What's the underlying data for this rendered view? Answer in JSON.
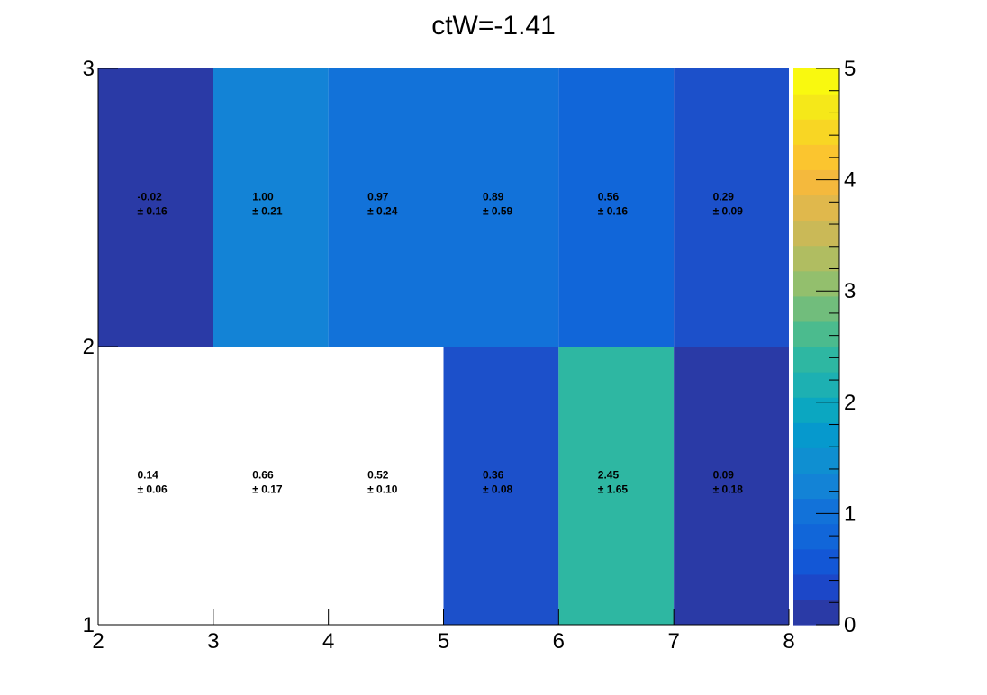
{
  "chart_data": {
    "type": "heatmap",
    "title": "ctW=-1.41",
    "xlabel": "",
    "ylabel": "",
    "x_edges": [
      2,
      3,
      4,
      5,
      6,
      7,
      8
    ],
    "y_edges": [
      1,
      2,
      3
    ],
    "xlim": [
      2,
      8
    ],
    "ylim": [
      1,
      3
    ],
    "x_ticks": [
      "2",
      "3",
      "4",
      "5",
      "6",
      "7",
      "8"
    ],
    "y_ticks": [
      "1",
      "2",
      "3"
    ],
    "z_range": [
      0,
      5
    ],
    "colorbar_ticks": [
      "0",
      "1",
      "2",
      "3",
      "4",
      "5"
    ],
    "cells": [
      {
        "x": [
          2,
          3
        ],
        "y": [
          2,
          3
        ],
        "value": "-0.02",
        "error": "0.16",
        "z": -0.02
      },
      {
        "x": [
          3,
          4
        ],
        "y": [
          2,
          3
        ],
        "value": "1.00",
        "error": "0.21",
        "z": 1.0
      },
      {
        "x": [
          4,
          5
        ],
        "y": [
          2,
          3
        ],
        "value": "0.97",
        "error": "0.24",
        "z": 0.97
      },
      {
        "x": [
          5,
          6
        ],
        "y": [
          2,
          3
        ],
        "value": "0.89",
        "error": "0.59",
        "z": 0.89
      },
      {
        "x": [
          6,
          7
        ],
        "y": [
          2,
          3
        ],
        "value": "0.56",
        "error": "0.16",
        "z": 0.56
      },
      {
        "x": [
          7,
          8
        ],
        "y": [
          2,
          3
        ],
        "value": "0.29",
        "error": "0.09",
        "z": 0.29
      },
      {
        "x": [
          2,
          3
        ],
        "y": [
          1,
          2
        ],
        "value": "0.14",
        "error": "0.06",
        "z": 0.14,
        "blank": true
      },
      {
        "x": [
          3,
          4
        ],
        "y": [
          1,
          2
        ],
        "value": "0.66",
        "error": "0.17",
        "z": 0.66,
        "blank": true
      },
      {
        "x": [
          4,
          5
        ],
        "y": [
          1,
          2
        ],
        "value": "0.52",
        "error": "0.10",
        "z": 0.52,
        "blank": true
      },
      {
        "x": [
          5,
          6
        ],
        "y": [
          1,
          2
        ],
        "value": "0.36",
        "error": "0.08",
        "z": 0.36
      },
      {
        "x": [
          6,
          7
        ],
        "y": [
          1,
          2
        ],
        "value": "2.45",
        "error": "1.65",
        "z": 2.45
      },
      {
        "x": [
          7,
          8
        ],
        "y": [
          1,
          2
        ],
        "value": "0.09",
        "error": "0.18",
        "z": 0.09
      }
    ],
    "palette": [
      "#2a3aa6",
      "#1c47c8",
      "#1357d6",
      "#1166d9",
      "#1272d9",
      "#1383d6",
      "#0f8fd1",
      "#0699cd",
      "#0ba7c1",
      "#1db0b2",
      "#2eb7a2",
      "#4bbb8e",
      "#71bd7c",
      "#93bf6d",
      "#b0bd61",
      "#cab957",
      "#e0b84c",
      "#f4b93d",
      "#fbc52f",
      "#f8d624",
      "#f5e819",
      "#f9f90f"
    ],
    "colors": {
      "cell_-0.02": "#2a3aa6",
      "cell_1.00": "#1383d6",
      "cell_0.97": "#1272d9",
      "cell_0.89": "#1272d9",
      "cell_0.56": "#1166d9",
      "cell_0.29": "#1c50ca",
      "cell_0.36": "#1c50ca",
      "cell_2.45": "#2eb7a2",
      "cell_0.09": "#2a3aa6"
    }
  }
}
